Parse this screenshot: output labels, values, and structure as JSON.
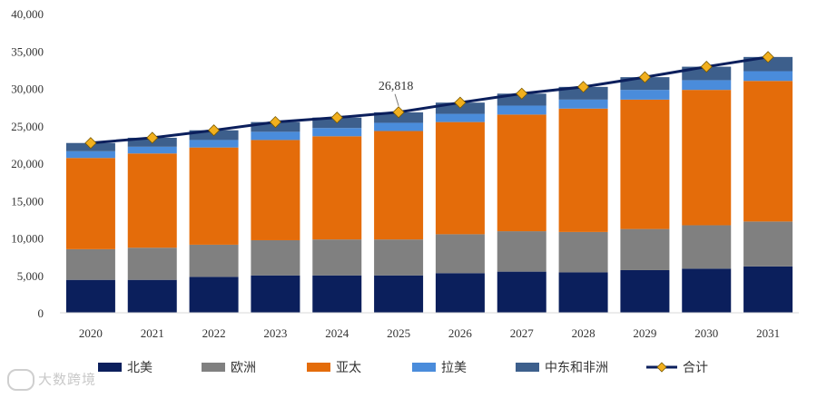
{
  "chart_data": {
    "type": "bar",
    "stacked": true,
    "categories": [
      "2020",
      "2021",
      "2022",
      "2023",
      "2024",
      "2025",
      "2026",
      "2027",
      "2028",
      "2029",
      "2030",
      "2031"
    ],
    "series": [
      {
        "name": "北美",
        "color": "#0b1f5c",
        "values": [
          4400,
          4400,
          4800,
          5000,
          5000,
          5000,
          5300,
          5500,
          5400,
          5700,
          5900,
          6200
        ]
      },
      {
        "name": "欧洲",
        "color": "#808080",
        "values": [
          4100,
          4300,
          4300,
          4700,
          4800,
          4800,
          5200,
          5400,
          5400,
          5500,
          5800,
          6000
        ]
      },
      {
        "name": "亚太",
        "color": "#e46c0a",
        "values": [
          12200,
          12600,
          13000,
          13400,
          13800,
          14500,
          15000,
          15600,
          16500,
          17300,
          18100,
          18800
        ]
      },
      {
        "name": "拉美",
        "color": "#4a8cdb",
        "values": [
          900,
          900,
          1000,
          1100,
          1100,
          1100,
          1100,
          1200,
          1200,
          1300,
          1300,
          1300
        ]
      },
      {
        "name": "中东和非洲",
        "color": "#3d5f8c",
        "values": [
          1100,
          1200,
          1300,
          1300,
          1400,
          1400,
          1500,
          1600,
          1700,
          1700,
          1800,
          1900
        ]
      }
    ],
    "line": {
      "name": "合计",
      "color": "#0b1f5c",
      "marker_color": "#f2b01e",
      "values": [
        22700,
        23400,
        24400,
        25500,
        26100,
        26818,
        28100,
        29300,
        30200,
        31500,
        32900,
        34200
      ]
    },
    "annotation": {
      "label": "26,818",
      "category": "2025"
    },
    "y_ticks": [
      "0",
      "5,000",
      "10,000",
      "15,000",
      "20,000",
      "25,000",
      "30,000",
      "35,000",
      "40,000"
    ],
    "ylim": [
      0,
      40000
    ],
    "grid": false,
    "legend": "bottom",
    "title": "",
    "xlabel": "",
    "ylabel": ""
  },
  "watermark": "大数跨境"
}
